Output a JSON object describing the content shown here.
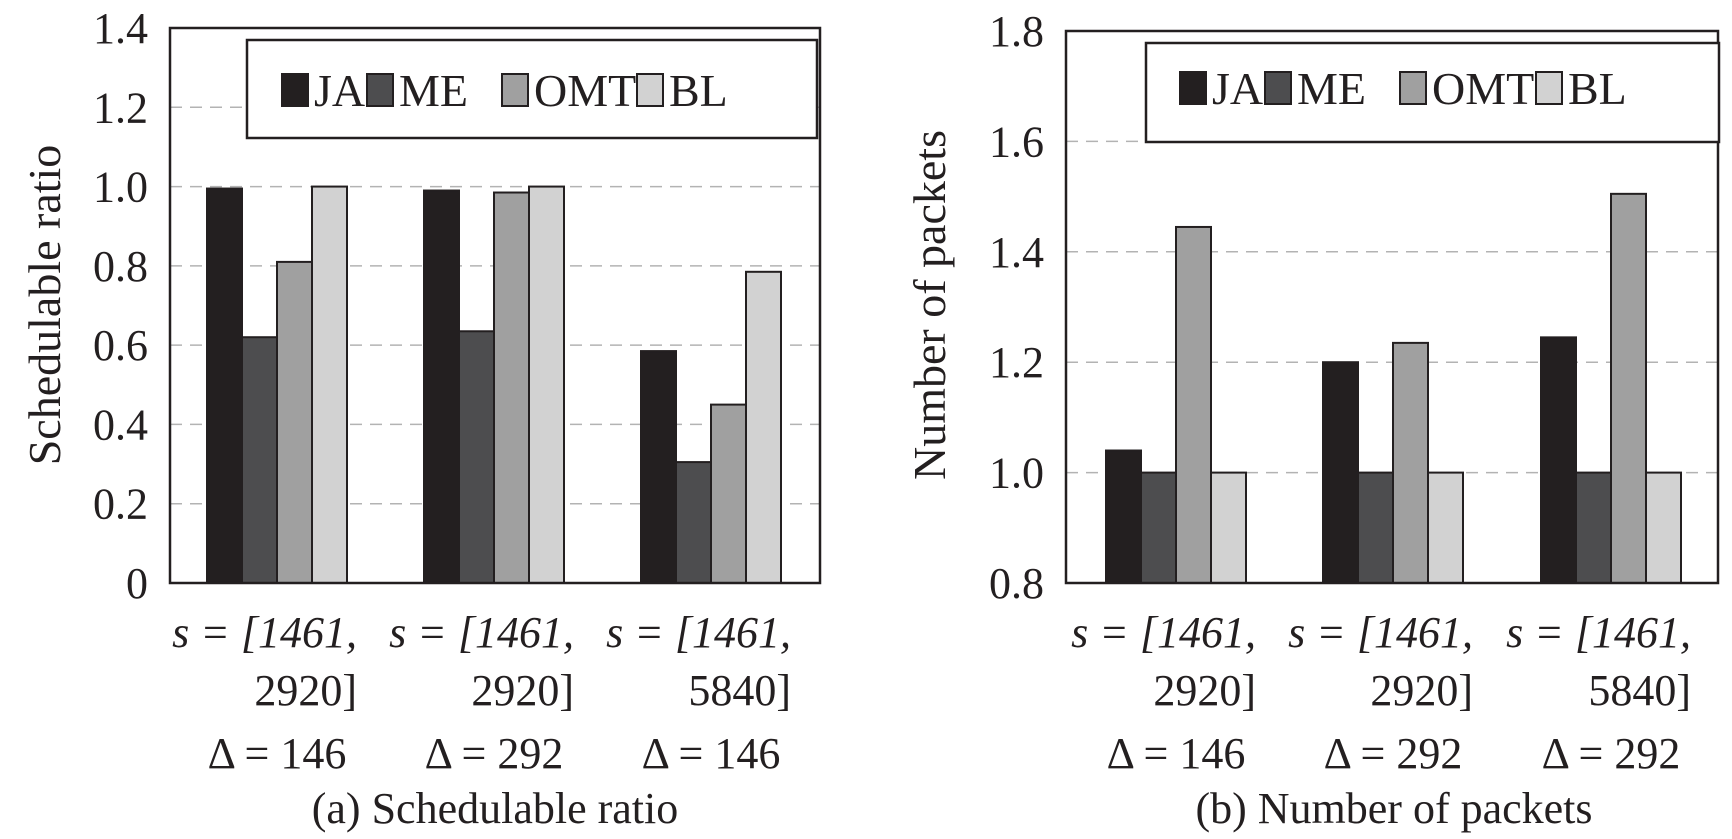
{
  "chart_data": [
    {
      "type": "bar",
      "title": "",
      "caption": "(a) Schedulable ratio",
      "xlabel": "",
      "ylabel": "Schedulable ratio",
      "ylim": [
        0,
        1.4
      ],
      "yticks": [
        "0",
        "0.2",
        "0.4",
        "0.6",
        "0.8",
        "1.0",
        "1.2",
        "1.4"
      ],
      "grid": "horizontal dashed",
      "legend_position": "top-right",
      "categories": [
        {
          "s_label": "s = [1461,",
          "s_label2": "2920]",
          "delta_label": "Δ = 146"
        },
        {
          "s_label": "s = [1461,",
          "s_label2": "2920]",
          "delta_label": "Δ = 292"
        },
        {
          "s_label": "s = [1461,",
          "s_label2": "5840]",
          "delta_label": "Δ = 146"
        }
      ],
      "series": [
        {
          "name": "JA",
          "color": "#231f20",
          "values": [
            0.995,
            0.99,
            0.585
          ]
        },
        {
          "name": "ME",
          "color": "#4d4d4f",
          "values": [
            0.62,
            0.635,
            0.305
          ]
        },
        {
          "name": "OMT",
          "color": "#a0a0a0",
          "values": [
            0.81,
            0.985,
            0.45
          ]
        },
        {
          "name": "BL",
          "color": "#d2d2d2",
          "values": [
            1.0,
            1.0,
            0.785
          ]
        }
      ]
    },
    {
      "type": "bar",
      "title": "",
      "caption": "(b) Number of packets",
      "xlabel": "",
      "ylabel": "Number of packets",
      "ylim": [
        0.8,
        1.8
      ],
      "yticks": [
        "0.8",
        "1.0",
        "1.2",
        "1.4",
        "1.6",
        "1.8"
      ],
      "grid": "horizontal dashed",
      "legend_position": "top-right",
      "categories": [
        {
          "s_label": "s = [1461,",
          "s_label2": "2920]",
          "delta_label": "Δ = 146"
        },
        {
          "s_label": "s = [1461,",
          "s_label2": "2920]",
          "delta_label": "Δ = 292"
        },
        {
          "s_label": "s = [1461,",
          "s_label2": "5840]",
          "delta_label": "Δ = 292"
        }
      ],
      "series": [
        {
          "name": "JA",
          "color": "#231f20",
          "values": [
            1.04,
            1.2,
            1.245
          ]
        },
        {
          "name": "ME",
          "color": "#4d4d4f",
          "values": [
            1.0,
            1.0,
            1.0
          ]
        },
        {
          "name": "OMT",
          "color": "#a0a0a0",
          "values": [
            1.445,
            1.235,
            1.505
          ]
        },
        {
          "name": "BL",
          "color": "#d2d2d2",
          "values": [
            1.0,
            1.0,
            1.0
          ]
        }
      ]
    }
  ]
}
